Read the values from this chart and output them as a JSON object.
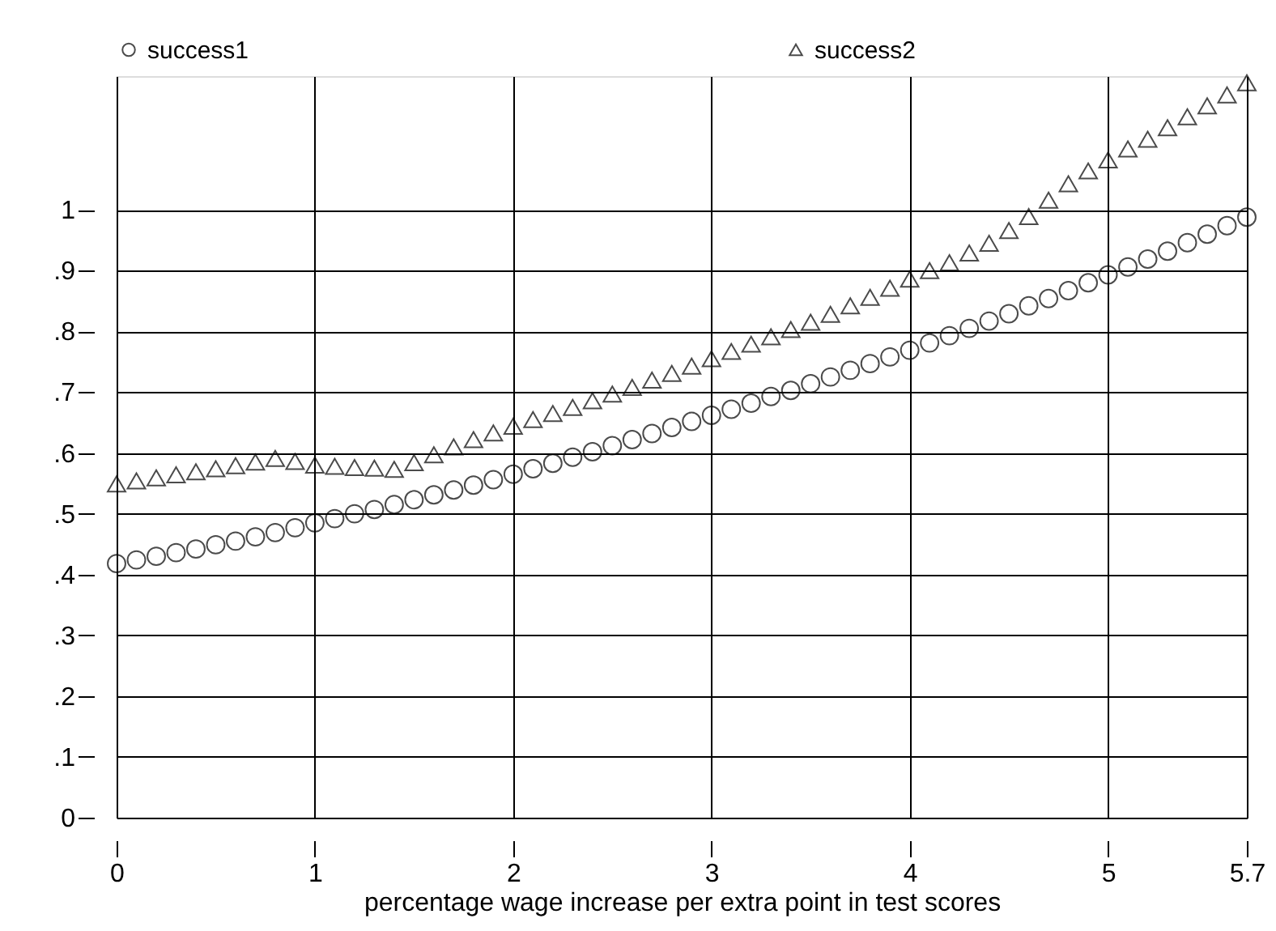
{
  "chart_data": {
    "type": "scatter",
    "xlabel": "percentage wage increase per extra point in test scores",
    "x": [
      0,
      0.1,
      0.2,
      0.3,
      0.4,
      0.5,
      0.6,
      0.7,
      0.8,
      0.9,
      1,
      1.1,
      1.2,
      1.3,
      1.4,
      1.5,
      1.6,
      1.7,
      1.8,
      1.9,
      2,
      2.1,
      2.2,
      2.3,
      2.4,
      2.5,
      2.6,
      2.7,
      2.8,
      2.9,
      3,
      3.1,
      3.2,
      3.3,
      3.4,
      3.5,
      3.6,
      3.7,
      3.8,
      3.9,
      4,
      4.1,
      4.2,
      4.3,
      4.4,
      4.5,
      4.6,
      4.7,
      4.8,
      4.9,
      5,
      5.1,
      5.2,
      5.3,
      5.4,
      5.5,
      5.6,
      5.7
    ],
    "series": [
      {
        "name": "success1",
        "color": "#000000",
        "marker": "circle",
        "values": [
          0.418,
          0.424,
          0.43,
          0.436,
          0.442,
          0.449,
          0.455,
          0.462,
          0.469,
          0.477,
          0.485,
          0.492,
          0.5,
          0.507,
          0.515,
          0.523,
          0.531,
          0.539,
          0.547,
          0.556,
          0.565,
          0.574,
          0.583,
          0.593,
          0.602,
          0.612,
          0.622,
          0.632,
          0.642,
          0.652,
          0.662,
          0.672,
          0.682,
          0.693,
          0.703,
          0.714,
          0.725,
          0.736,
          0.747,
          0.758,
          0.769,
          0.781,
          0.793,
          0.805,
          0.817,
          0.829,
          0.842,
          0.854,
          0.867,
          0.88,
          0.893,
          0.906,
          0.919,
          0.932,
          0.946,
          0.96,
          0.974,
          0.988
        ]
      },
      {
        "name": "success2",
        "color": "#000000",
        "marker": "triangle",
        "values": [
          0.549,
          0.554,
          0.559,
          0.564,
          0.569,
          0.574,
          0.579,
          0.585,
          0.591,
          0.586,
          0.58,
          0.578,
          0.576,
          0.575,
          0.573,
          0.584,
          0.597,
          0.61,
          0.622,
          0.633,
          0.644,
          0.655,
          0.665,
          0.675,
          0.686,
          0.697,
          0.708,
          0.72,
          0.731,
          0.743,
          0.755,
          0.767,
          0.779,
          0.791,
          0.803,
          0.815,
          0.828,
          0.842,
          0.856,
          0.871,
          0.886,
          0.9,
          0.913,
          0.929,
          0.945,
          0.966,
          0.989,
          1.016,
          1.043,
          1.064,
          1.082,
          1.1,
          1.116,
          1.135,
          1.153,
          1.171,
          1.189,
          1.209
        ]
      }
    ],
    "xlim": [
      0,
      5.7
    ],
    "xticks": [
      0,
      1,
      2,
      3,
      4,
      5,
      5.7
    ],
    "ylim": [
      0,
      1.22
    ],
    "yticks": [
      0,
      {
        "value": 0.1,
        "label": ".1"
      },
      {
        "value": 0.2,
        "label": ".2"
      },
      {
        "value": 0.3,
        "label": ".3"
      },
      {
        "value": 0.4,
        "label": ".4"
      },
      {
        "value": 0.5,
        "label": ".5"
      },
      {
        "value": 0.6,
        "label": ".6"
      },
      {
        "value": 0.7,
        "label": ".7"
      },
      {
        "value": 0.8,
        "label": ".8"
      },
      {
        "value": 0.9,
        "label": ".9"
      },
      1
    ],
    "grid": true,
    "legend": "top"
  }
}
